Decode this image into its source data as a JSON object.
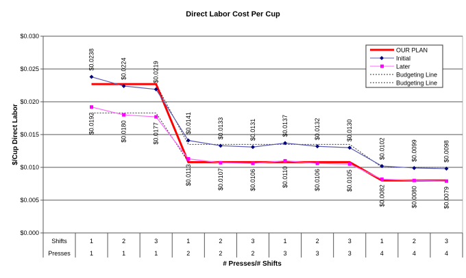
{
  "chart_data": {
    "type": "line",
    "title": "Direct Labor Cost Per Cup",
    "xlabel": "# Presses/# Shifts",
    "ylabel": "$/Cup Direct Labor",
    "ylim": [
      0,
      0.03
    ],
    "yticks": [
      "$0.000",
      "$0.005",
      "$0.010",
      "$0.015",
      "$0.020",
      "$0.025",
      "$0.030"
    ],
    "ytick_values": [
      0,
      0.005,
      0.01,
      0.015,
      0.02,
      0.025,
      0.03
    ],
    "grid": true,
    "legend_position": "top-right",
    "table": {
      "rows": [
        {
          "label": "Shifts",
          "values": [
            "1",
            "2",
            "3",
            "1",
            "2",
            "3",
            "1",
            "2",
            "3",
            "1",
            "2",
            "3"
          ]
        },
        {
          "label": "Presses",
          "values": [
            "1",
            "1",
            "1",
            "2",
            "2",
            "2",
            "3",
            "3",
            "3",
            "4",
            "4",
            "4"
          ]
        }
      ]
    },
    "series": [
      {
        "name": "OUR PLAN",
        "color": "#ff0000",
        "style": "solid-thick",
        "values": [
          0.0227,
          0.0227,
          0.0227,
          0.0108,
          0.0108,
          0.0108,
          0.0108,
          0.0108,
          0.0108,
          0.008,
          0.008,
          0.008
        ]
      },
      {
        "name": "Initial",
        "color": "#000080",
        "style": "diamond",
        "values": [
          0.0238,
          0.0224,
          0.0219,
          0.0141,
          0.0133,
          0.0131,
          0.0137,
          0.0132,
          0.013,
          0.0102,
          0.0099,
          0.0098
        ],
        "labels": [
          "$0.0238",
          "$0.0224",
          "$0.0219",
          "$0.0141",
          "$0.0133",
          "$0.0131",
          "$0.0137",
          "$0.0132",
          "$0.0130",
          "$0.0102",
          "$0.0099",
          "$0.0098"
        ]
      },
      {
        "name": "Later",
        "color": "#ff00ff",
        "style": "square",
        "values": [
          0.0192,
          0.018,
          0.0177,
          0.0113,
          0.0107,
          0.0106,
          0.011,
          0.0106,
          0.0105,
          0.0082,
          0.008,
          0.0079
        ],
        "labels": [
          "$0.0192",
          "$0.0180",
          "$0.0177",
          "$0.0113",
          "$0.0107",
          "$0.0106",
          "$0.0110",
          "$0.0106",
          "$0.0105",
          "$0.0082",
          "$0.0080",
          "$0.0079"
        ]
      },
      {
        "name": "Budgeting Line",
        "color": "#333333",
        "style": "dotted",
        "values": [
          0.0227,
          0.0227,
          0.0227,
          0.0135,
          0.0135,
          0.0135,
          0.0135,
          0.0135,
          0.0135,
          0.01,
          0.01,
          0.01
        ]
      },
      {
        "name": "Budgeting Line",
        "color": "#333333",
        "style": "dotted",
        "values": [
          0.0183,
          0.0183,
          0.0183,
          0.0108,
          0.0108,
          0.0108,
          0.0108,
          0.0108,
          0.0108,
          0.008,
          0.008,
          0.008
        ]
      }
    ]
  }
}
